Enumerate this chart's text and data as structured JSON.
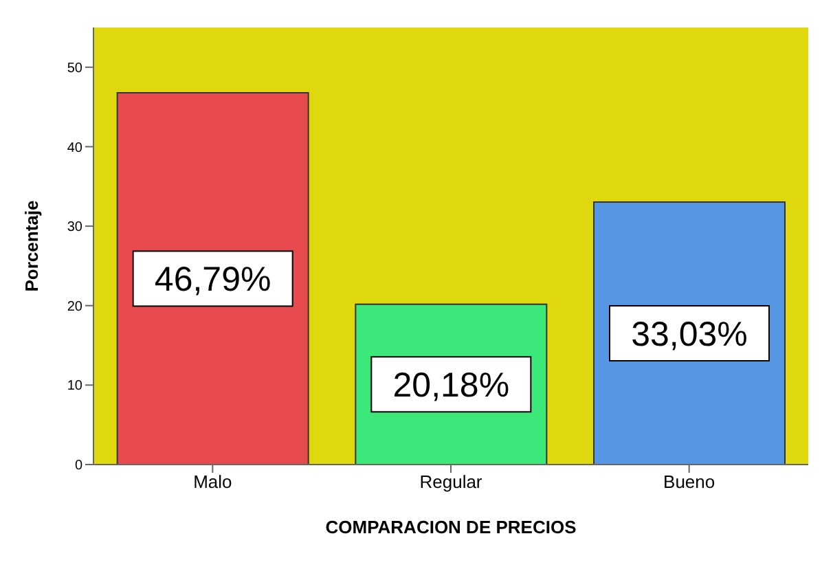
{
  "chart_data": {
    "type": "bar",
    "xlabel": "COMPARACION DE PRECIOS",
    "ylabel": "Porcentaje",
    "categories": [
      "Malo",
      "Regular",
      "Bueno"
    ],
    "values": [
      46.79,
      20.18,
      33.03
    ],
    "colors": [
      "#e84b4d",
      "#3de87a",
      "#5597e2"
    ],
    "value_labels": [
      "46,79%",
      "20,18%",
      "33,03%"
    ],
    "ylim": [
      0,
      55
    ],
    "yticks": [
      0,
      10,
      20,
      30,
      40,
      50
    ],
    "grid": false
  }
}
